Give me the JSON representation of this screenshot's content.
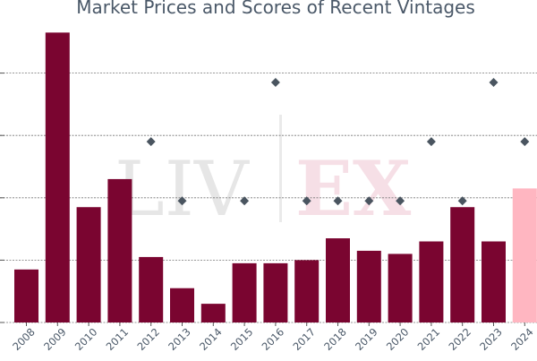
{
  "chart_data": {
    "type": "bar",
    "title": "Market Prices and Scores of Recent Vintages",
    "xlabel": "",
    "ylabel": "",
    "categories": [
      "2008",
      "2009",
      "2010",
      "2011",
      "2012",
      "2013",
      "2014",
      "2015",
      "2016",
      "2017",
      "2018",
      "2019",
      "2020",
      "2021",
      "2022",
      "2023",
      "2024"
    ],
    "ylim": [
      0,
      100
    ],
    "series": [
      {
        "kind": "bar",
        "values": [
          17,
          93,
          37,
          46,
          21,
          11,
          6,
          19,
          19,
          20,
          27,
          23,
          22,
          26,
          37,
          26,
          43
        ],
        "colors": [
          "#7a0530",
          "#7a0530",
          "#7a0530",
          "#7a0530",
          "#7a0530",
          "#7a0530",
          "#7a0530",
          "#7a0530",
          "#7a0530",
          "#7a0530",
          "#7a0530",
          "#7a0530",
          "#7a0530",
          "#7a0530",
          "#7a0530",
          "#7a0530",
          "#ffb6c1"
        ]
      },
      {
        "kind": "scatter",
        "marker": "diamond",
        "color": "#4a5560",
        "values": [
          null,
          null,
          null,
          null,
          58,
          39,
          null,
          39,
          77,
          39,
          39,
          39,
          39,
          58,
          39,
          77,
          58
        ]
      }
    ],
    "grid_y": [
      0,
      20,
      40,
      60,
      80
    ],
    "watermark": "LIV|EX",
    "bar_color": "#7a0530",
    "highlight_color": "#ffb6c1"
  }
}
